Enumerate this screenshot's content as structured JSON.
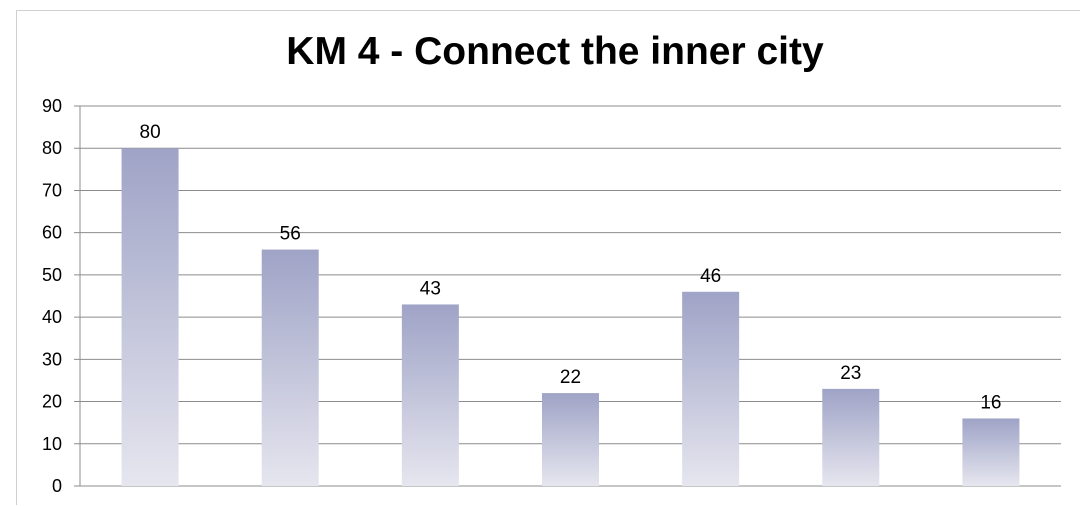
{
  "chart_data": {
    "type": "bar",
    "title": "KM 4 - Connect the inner city",
    "categories": [
      "",
      "",
      "",
      "",
      "",
      "",
      ""
    ],
    "values": [
      80,
      56,
      43,
      22,
      46,
      23,
      16
    ],
    "ylim": [
      0,
      90
    ],
    "yticks": [
      0,
      10,
      20,
      30,
      40,
      50,
      60,
      70,
      80,
      90
    ],
    "grid": true,
    "legend": "none",
    "data_labels": true,
    "colors": {
      "bar_top": "#9fa3c6",
      "bar_bottom": "#e6e6ef",
      "grid": "#8c8c8c",
      "axis": "#8c8c8c"
    }
  }
}
